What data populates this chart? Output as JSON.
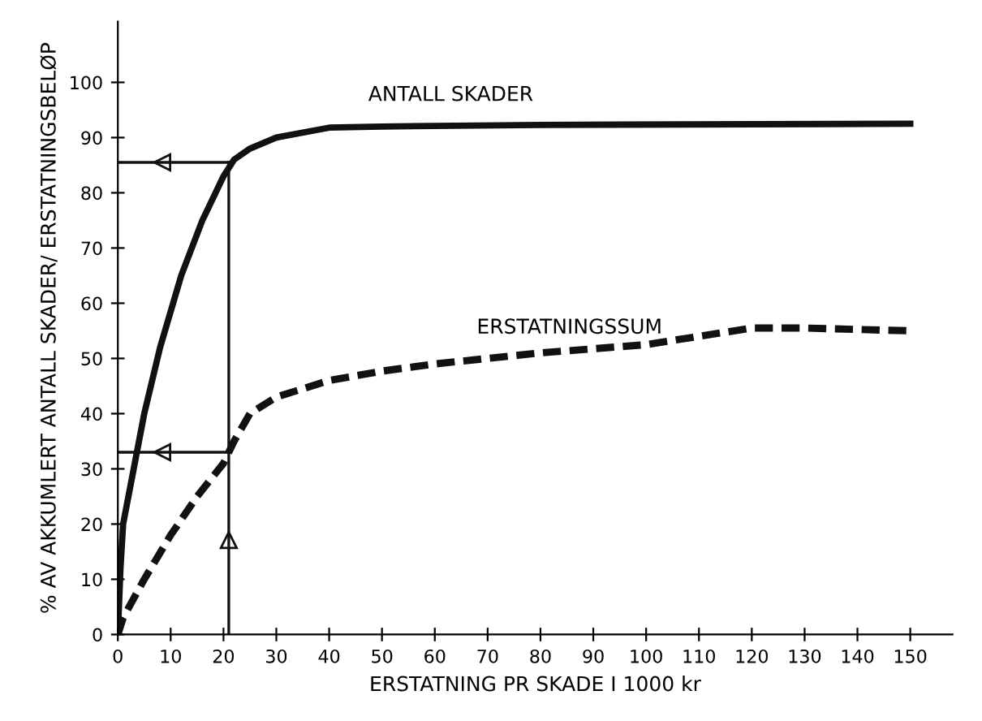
{
  "chart_data": {
    "type": "line",
    "xlabel": "ERSTATNING PR SKADE I 1000 kr",
    "ylabel": "% AV AKKUMLERT ANTALL SKADER/ ERSTATNINGSBELØP",
    "xlim": [
      0,
      158
    ],
    "ylim": [
      0,
      111
    ],
    "xticks": [
      0,
      10,
      20,
      30,
      40,
      50,
      60,
      70,
      80,
      90,
      100,
      110,
      120,
      130,
      140,
      150
    ],
    "yticks": [
      0,
      10,
      20,
      30,
      40,
      50,
      60,
      70,
      80,
      90,
      100
    ],
    "grid": false,
    "legend": false,
    "marker": "none",
    "series": [
      {
        "name": "ANTALL SKADER",
        "color": "#111111",
        "line_style": "solid",
        "x": [
          0,
          0.5,
          1,
          3,
          5,
          8,
          12,
          16,
          20,
          22,
          25,
          30,
          40,
          50,
          80,
          150
        ],
        "values": [
          0,
          12,
          20,
          30,
          40,
          52,
          65,
          75,
          83,
          86,
          88,
          90,
          91.8,
          92,
          92.3,
          92.5
        ]
      },
      {
        "name": "ERSTATNINGSSUM",
        "color": "#111111",
        "line_style": "dashed",
        "x": [
          0,
          1,
          5,
          10,
          15,
          20,
          22,
          25,
          30,
          40,
          50,
          60,
          70,
          80,
          100,
          120,
          130,
          150
        ],
        "values": [
          0,
          3,
          10,
          18,
          25,
          31,
          35,
          40,
          43,
          46,
          47.7,
          49,
          50,
          51,
          52.5,
          55.5,
          55.5,
          55
        ]
      }
    ],
    "ref_lines": [
      {
        "axis": "x",
        "value": 21
      },
      {
        "axis": "y",
        "value": 85.5
      },
      {
        "axis": "y",
        "value": 33
      }
    ]
  }
}
